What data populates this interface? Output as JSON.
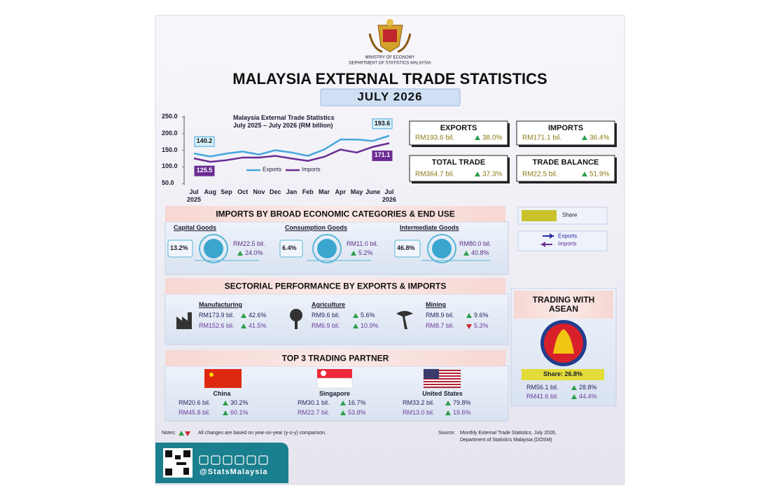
{
  "header": {
    "ministry": "MINISTRY OF ECONOMY",
    "department": "DEPARTMENT OF STATISTICS MALAYSIA",
    "title": "MALAYSIA EXTERNAL TRADE STATISTICS",
    "period": "JULY 2026"
  },
  "chart_data": {
    "type": "line",
    "title": "Malaysia External Trade Statistics",
    "subtitle": "July 2025 – July 2026 (RM billion)",
    "categories": [
      "Jul",
      "Aug",
      "Sep",
      "Oct",
      "Nov",
      "Dec",
      "Jan",
      "Feb",
      "Mar",
      "Apr",
      "May",
      "June",
      "Jul"
    ],
    "year_labels": [
      "2025",
      "2026"
    ],
    "series": [
      {
        "name": "Exports",
        "color": "#45a6dc",
        "values": [
          140.2,
          131,
          140,
          146,
          137,
          150,
          143,
          133,
          152,
          182,
          182,
          178,
          193.6
        ]
      },
      {
        "name": "Imports",
        "color": "#6a2c91",
        "values": [
          125.5,
          115,
          120,
          128,
          128,
          133,
          125,
          118,
          130,
          152,
          143,
          160,
          171.1
        ]
      }
    ],
    "ylim": [
      50,
      250
    ],
    "yticks": [
      {
        "value": 50,
        "label": "50.0"
      },
      {
        "value": 100,
        "label": "100.0"
      },
      {
        "value": 150,
        "label": "150.0"
      },
      {
        "value": 200,
        "label": "200.0"
      },
      {
        "value": 250,
        "label": "250.0"
      }
    ],
    "grid": false,
    "data_labels": "ends"
  },
  "summary": [
    {
      "label": "EXPORTS",
      "value": "RM193.6 bil.",
      "change": "38.0%",
      "direction": "up"
    },
    {
      "label": "IMPORTS",
      "value": "RM171.1 bil.",
      "change": "36.4%",
      "direction": "up"
    },
    {
      "label": "TOTAL TRADE",
      "value": "RM364.7 bil.",
      "change": "37.3%",
      "direction": "up"
    },
    {
      "label": "TRADE BALANCE",
      "value": "RM22.5 bil.",
      "change": "51.9%",
      "direction": "up"
    }
  ],
  "imports_by_category": {
    "title": "IMPORTS BY BROAD ECONOMIC CATEGORIES & END USE",
    "items": [
      {
        "name": "Capital Goods",
        "share": "13.2%",
        "value": "RM22.5 bil.",
        "change": "24.0%",
        "direction": "up"
      },
      {
        "name": "Consumption Goods",
        "share": "6.4%",
        "value": "RM11.0 bil.",
        "change": "5.2%",
        "direction": "up"
      },
      {
        "name": "Intermediate Goods",
        "share": "46.8%",
        "value": "RM80.0 bil.",
        "change": "40.8%",
        "direction": "up"
      }
    ]
  },
  "legend": {
    "share": "Share",
    "exports": "Exports",
    "imports": "Imports"
  },
  "sectoral": {
    "title": "SECTORIAL PERFORMANCE BY EXPORTS & IMPORTS",
    "items": [
      {
        "name": "Manufacturing",
        "exports": {
          "value": "RM173.9 bil.",
          "change": "42.6%",
          "direction": "up"
        },
        "imports": {
          "value": "RM152.6 bil.",
          "change": "41.5%",
          "direction": "up"
        }
      },
      {
        "name": "Agriculture",
        "exports": {
          "value": "RM9.6 bil.",
          "change": "5.6%",
          "direction": "up"
        },
        "imports": {
          "value": "RM6.9 bil.",
          "change": "10.9%",
          "direction": "up"
        }
      },
      {
        "name": "Mining",
        "exports": {
          "value": "RM8.9 bil.",
          "change": "9.6%",
          "direction": "up"
        },
        "imports": {
          "value": "RM8.7 bil.",
          "change": "5.3%",
          "direction": "down"
        }
      }
    ]
  },
  "asean": {
    "title": "TRADING WITH ASEAN",
    "share": "Share: 26.8%",
    "exports": {
      "value": "RM56.1 bil.",
      "change": "28.8%",
      "direction": "up"
    },
    "imports": {
      "value": "RM41.6 bil.",
      "change": "44.4%",
      "direction": "up"
    }
  },
  "partners": {
    "title": "TOP 3 TRADING PARTNER",
    "items": [
      {
        "name": "China",
        "exports": {
          "value": "RM20.6 bil.",
          "change": "30.2%",
          "direction": "up"
        },
        "imports": {
          "value": "RM45.8 bil.",
          "change": "60.1%",
          "direction": "up"
        }
      },
      {
        "name": "Singapore",
        "exports": {
          "value": "RM30.1 bil.",
          "change": "16.7%",
          "direction": "up"
        },
        "imports": {
          "value": "RM22.7 bil.",
          "change": "53.8%",
          "direction": "up"
        }
      },
      {
        "name": "United States",
        "exports": {
          "value": "RM33.2 bil.",
          "change": "79.8%",
          "direction": "up"
        },
        "imports": {
          "value": "RM13.0 bil.",
          "change": "19.6%",
          "direction": "up"
        }
      }
    ]
  },
  "notes": {
    "label": "Notes:",
    "text": "All changes are based on year-on-year (y-o-y) comparison."
  },
  "source": {
    "label": "Source:",
    "lines": [
      "Monthly External Trade Statistics, July 2026,",
      "Department of Statistics Malaysia (DOSM)"
    ]
  },
  "footer": {
    "handle": "@StatsMalaysia"
  }
}
